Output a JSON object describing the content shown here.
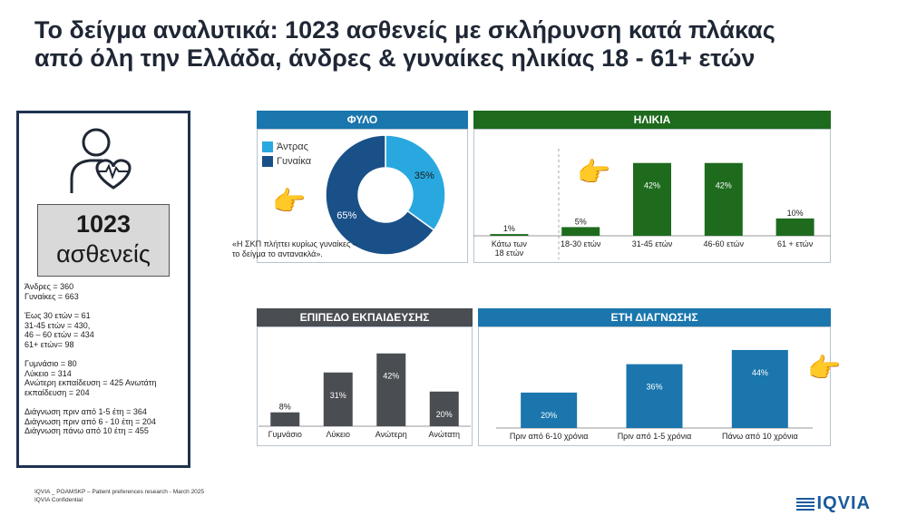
{
  "title": {
    "line1": "Το δείγμα αναλυτικά: 1023 ασθενείς με σκλήρυνση κατά πλάκας",
    "line2": "από όλη την Ελλάδα, άνδρες & γυναίκες ηλικίας 18 - 61+ ετών"
  },
  "summary": {
    "count": "1023",
    "label": "ασθενείς",
    "groups": [
      [
        "Άνδρες = 360",
        "Γυναίκες = 663"
      ],
      [
        "Έως 30 ετών = 61",
        "31-45 ετών = 430,",
        "46 – 60 ετών = 434",
        "61+ ετών= 98"
      ],
      [
        "Γυμνάσιο = 80",
        "Λύκειο = 314",
        "Ανώτερη εκπαίδευση = 425 Ανωτάτη",
        "εκπαίδευση = 204"
      ],
      [
        "Διάγνωση πριν από 1-5 έτη = 364",
        "Διάγνωση πριν από 6 - 10 έτη = 204",
        "Διάγνωση πάνω από 10 έτη = 455"
      ]
    ]
  },
  "note": "«Η ΣΚΠ πλήττει κυρίως γυναίκες – το δείγμα το αντανακλά».",
  "hand_glyph": "👉",
  "footer": {
    "line1": "IQVIA _ POAMSKP – Patient preferences research - March 2025",
    "line2": "IQVIA Confidential"
  },
  "logo": "IQVIA",
  "colors": {
    "light_blue": "#29a8e0",
    "dark_blue": "#1a5088",
    "green": "#1e6b1e",
    "gray": "#4a4d52",
    "teal_blue": "#1a76ad"
  },
  "chart_data": [
    {
      "type": "pie",
      "title": "ΦΥΛΟ",
      "categories": [
        "Άντρας",
        "Γυναίκα"
      ],
      "values": [
        35,
        65
      ],
      "labels": [
        "35%",
        "65%"
      ],
      "legend": "top-left"
    },
    {
      "type": "bar",
      "title": "ΗΛΙΚΙΑ",
      "categories": [
        "Κάτω των 18 ετών",
        "18-30 ετών",
        "31-45 ετών",
        "46-60 ετών",
        "61 + ετών"
      ],
      "values": [
        1,
        5,
        42,
        42,
        10
      ],
      "labels": [
        "1%",
        "5%",
        "42%",
        "42%",
        "10%"
      ],
      "ylim": [
        0,
        45
      ]
    },
    {
      "type": "bar",
      "title": "ΕΠΙΠΕΔΟ ΕΚΠΑΙΔΕΥΣΗΣ",
      "categories": [
        "Γυμνάσιο",
        "Λύκειο",
        "Ανώτερη",
        "Ανώτατη"
      ],
      "values": [
        8,
        31,
        42,
        20
      ],
      "labels": [
        "8%",
        "31%",
        "42%",
        "20%"
      ],
      "ylim": [
        0,
        45
      ]
    },
    {
      "type": "bar",
      "title": "ΕΤΗ ΔΙΑΓΝΩΣΗΣ",
      "categories": [
        "Πριν από 6-10 χρόνια",
        "Πριν από 1-5 χρόνια",
        "Πάνω από 10 χρόνια"
      ],
      "values": [
        20,
        36,
        44
      ],
      "labels": [
        "20%",
        "36%",
        "44%"
      ],
      "ylim": [
        0,
        45
      ]
    }
  ]
}
